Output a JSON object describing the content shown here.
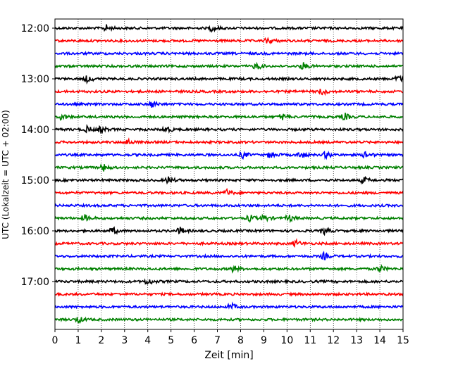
{
  "chart_data": {
    "type": "line",
    "title": "",
    "xlabel": "Zeit  [min]",
    "ylabel": "UTC (Lokalzeit = UTC + 02:00)",
    "xlim": [
      0,
      15
    ],
    "x_ticks": [
      "0",
      "1",
      "2",
      "3",
      "4",
      "5",
      "6",
      "7",
      "8",
      "9",
      "10",
      "11",
      "12",
      "13",
      "14",
      "15"
    ],
    "y_tick_labels": [
      "12:00",
      "13:00",
      "14:00",
      "15:00",
      "16:00",
      "17:00"
    ],
    "grid": {
      "vertical": true,
      "horizontal": false
    },
    "color_cycle": [
      "#000000",
      "#ff0000",
      "#0000ff",
      "#008000"
    ],
    "traces": [
      {
        "start": "12:00",
        "events": [
          2.2,
          6.8
        ]
      },
      {
        "start": "12:15",
        "events": [
          9.2
        ]
      },
      {
        "start": "12:30",
        "events": []
      },
      {
        "start": "12:45",
        "events": [
          8.7,
          10.7
        ]
      },
      {
        "start": "13:00",
        "events": [
          1.4,
          14.8
        ]
      },
      {
        "start": "13:15",
        "events": [
          11.5
        ]
      },
      {
        "start": "13:30",
        "events": [
          4.2
        ]
      },
      {
        "start": "13:45",
        "events": [
          0.3,
          9.8,
          12.5
        ]
      },
      {
        "start": "14:00",
        "events": [
          1.4,
          2.0,
          4.8
        ]
      },
      {
        "start": "14:15",
        "events": [
          3.1
        ]
      },
      {
        "start": "14:30",
        "events": [
          8.1,
          9.3,
          10.6,
          11.7,
          13.4
        ]
      },
      {
        "start": "14:45",
        "events": [
          2.1
        ]
      },
      {
        "start": "15:00",
        "events": [
          4.9,
          13.3
        ]
      },
      {
        "start": "15:15",
        "events": [
          7.4
        ]
      },
      {
        "start": "15:30",
        "events": []
      },
      {
        "start": "15:45",
        "events": [
          1.3,
          8.4,
          9.0,
          10.1
        ]
      },
      {
        "start": "16:00",
        "events": [
          2.5,
          5.4,
          11.6
        ]
      },
      {
        "start": "16:15",
        "events": [
          10.4
        ]
      },
      {
        "start": "16:30",
        "events": [
          11.6
        ]
      },
      {
        "start": "16:45",
        "events": [
          7.7,
          14.0
        ]
      },
      {
        "start": "17:00",
        "events": [
          4.0
        ]
      },
      {
        "start": "17:15",
        "events": []
      },
      {
        "start": "17:30",
        "events": [
          7.6
        ]
      },
      {
        "start": "17:45",
        "events": [
          1.0
        ]
      }
    ]
  }
}
